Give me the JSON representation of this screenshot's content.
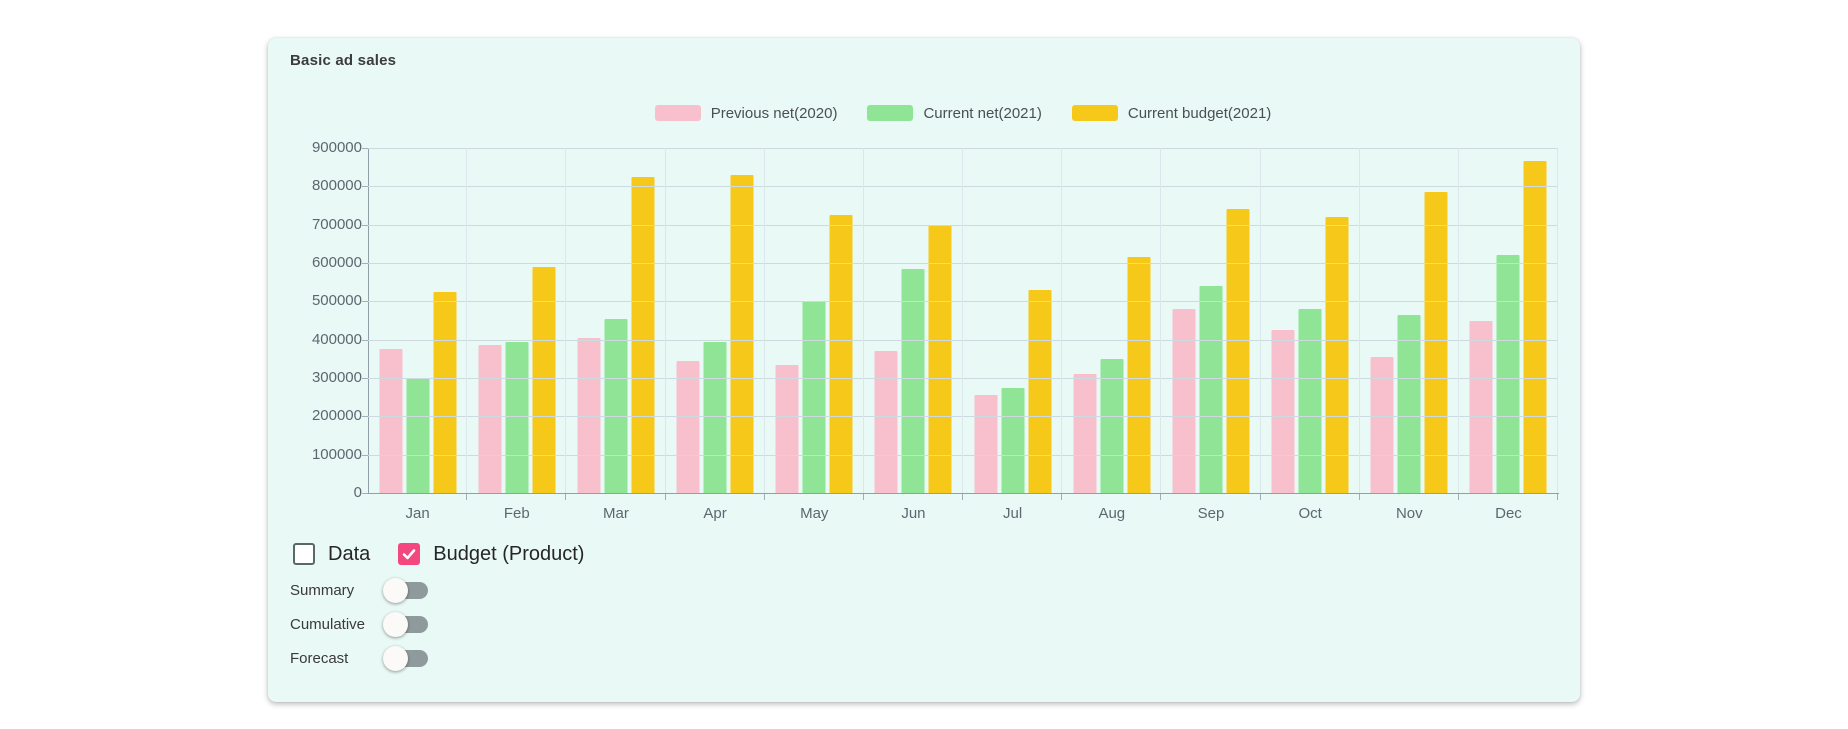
{
  "card": {
    "title": "Basic ad sales",
    "background": "#e9f9f6"
  },
  "chart_data": {
    "type": "bar",
    "title": "Basic ad sales",
    "categories": [
      "Jan",
      "Feb",
      "Mar",
      "Apr",
      "May",
      "Jun",
      "Jul",
      "Aug",
      "Sep",
      "Oct",
      "Nov",
      "Dec"
    ],
    "series": [
      {
        "name": "Previous net(2020)",
        "color": "#F8C0CD",
        "values": [
          375000,
          385000,
          405000,
          345000,
          335000,
          370000,
          255000,
          310000,
          480000,
          425000,
          355000,
          450000
        ]
      },
      {
        "name": "Current net(2021)",
        "color": "#8FE595",
        "values": [
          300000,
          395000,
          455000,
          395000,
          500000,
          585000,
          275000,
          350000,
          540000,
          480000,
          465000,
          620000
        ]
      },
      {
        "name": "Current budget(2021)",
        "color": "#F6C81A",
        "values": [
          525000,
          590000,
          825000,
          830000,
          725000,
          700000,
          530000,
          615000,
          740000,
          720000,
          785000,
          865000
        ]
      }
    ],
    "xlabel": "",
    "ylabel": "",
    "ylim": [
      0,
      900000
    ],
    "ytick_step": 100000,
    "grid": true,
    "legend_position": "top-center"
  },
  "controls": {
    "checkboxes": [
      {
        "label": "Data",
        "checked": false
      },
      {
        "label": "Budget (Product)",
        "checked": true
      }
    ],
    "toggles": [
      {
        "label": "Summary",
        "on": false
      },
      {
        "label": "Cumulative",
        "on": false
      },
      {
        "label": "Forecast",
        "on": false
      }
    ]
  },
  "colors": {
    "checkbox_checked": "#F2487D",
    "axis_line": "#8FA0A8",
    "grid_line_h": "#CDDBE0",
    "grid_line_v": "#DBE7EA",
    "tick_label": "#5C6770",
    "legend_text": "#4A4F54",
    "card_background": "#E9F9F6"
  }
}
